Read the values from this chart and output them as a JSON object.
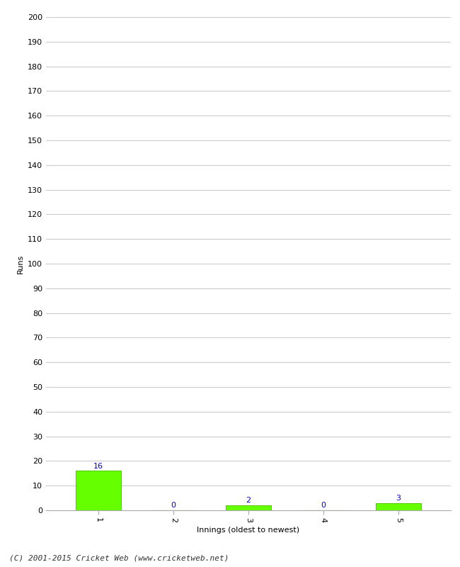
{
  "innings": [
    1,
    2,
    3,
    4,
    5
  ],
  "runs": [
    16,
    0,
    2,
    0,
    3
  ],
  "bar_color": "#66ff00",
  "bar_edge_color": "#55cc00",
  "label_color": "#0000cc",
  "ylabel": "Runs",
  "xlabel": "Innings (oldest to newest)",
  "ylim": [
    0,
    200
  ],
  "yticks": [
    0,
    10,
    20,
    30,
    40,
    50,
    60,
    70,
    80,
    90,
    100,
    110,
    120,
    130,
    140,
    150,
    160,
    170,
    180,
    190,
    200
  ],
  "footer": "(C) 2001-2015 Cricket Web (www.cricketweb.net)",
  "background_color": "#ffffff",
  "grid_color": "#cccccc",
  "label_fontsize": 8,
  "axis_label_fontsize": 8,
  "tick_label_fontsize": 8,
  "footer_fontsize": 8
}
